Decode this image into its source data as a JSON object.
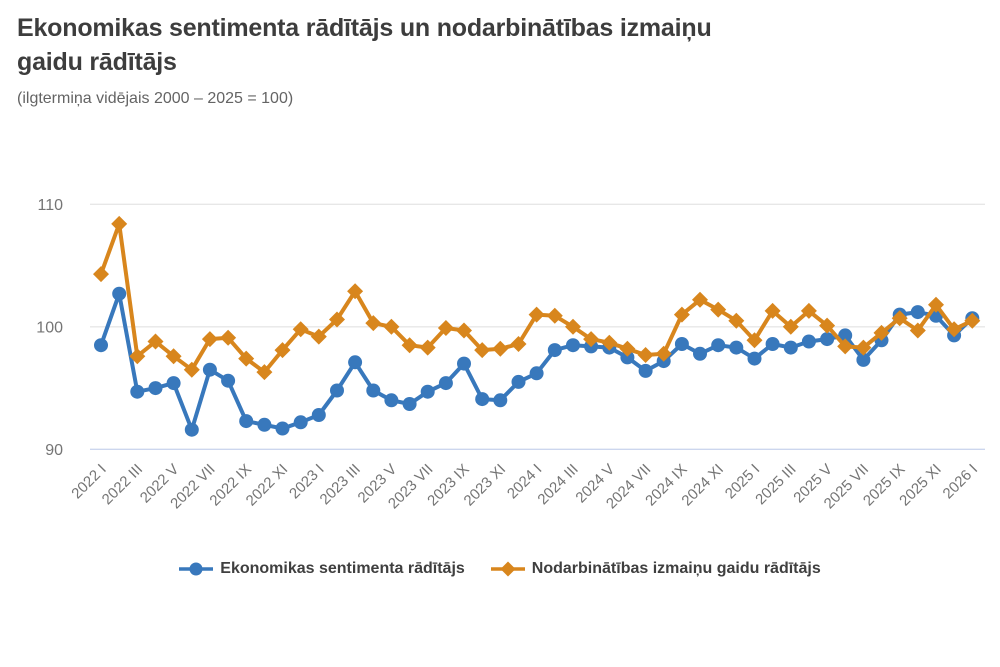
{
  "header": {
    "title_line1": "Ekonomikas sentimenta rādītājs un nodarbinātības izmaiņu",
    "title_line2": "gaidu rādītājs",
    "subtitle": "(ilgtermiņa vidējais 2000 – 2025 = 100)"
  },
  "colors": {
    "series1": "#3878bc",
    "series2": "#d8861d",
    "grid": "#e7e7e7",
    "baseline": "#ccd6ee",
    "axis_label": "#757575",
    "title": "#3d3d3d",
    "legend_text": "#3f3f3f"
  },
  "legend": {
    "item1": "Ekonomikas sentimenta rādītājs",
    "item2": "Nodarbinātības izmaiņu gaidu rādītājs"
  },
  "chart_data": {
    "type": "line",
    "title": "Ekonomikas sentimenta rādītājs un nodarbinātības izmaiņu gaidu rādītājs",
    "subtitle": "(ilgtermiņa vidējais 2000 – 2025 = 100)",
    "xlabel": "",
    "ylabel": "",
    "yticks": [
      110,
      100,
      90
    ],
    "ylim": [
      88,
      112
    ],
    "grid": "horizontal",
    "legend_position": "bottom",
    "x_tick_step": 2,
    "months": [
      "2022 I",
      "2022 II",
      "2022 III",
      "2022 IV",
      "2022 V",
      "2022 VI",
      "2022 VII",
      "2022 VIII",
      "2022 IX",
      "2022 X",
      "2022 XI",
      "2022 XII",
      "2023 I",
      "2023 II",
      "2023 III",
      "2023 IV",
      "2023 V",
      "2023 VI",
      "2023 VII",
      "2023 VIII",
      "2023 IX",
      "2023 X",
      "2023 XI",
      "2023 XII",
      "2024 I",
      "2024 II",
      "2024 III",
      "2024 IV",
      "2024 V",
      "2024 VI",
      "2024 VII",
      "2024 VIII",
      "2024 IX",
      "2024 X",
      "2024 XI",
      "2024 XII",
      "2025 I",
      "2025 II",
      "2025 III",
      "2025 IV",
      "2025 V",
      "2025 VI",
      "2025 VII",
      "2025 VIII",
      "2025 IX",
      "2025 X",
      "2025 XI",
      "2025 XII",
      "2026 I"
    ],
    "series": [
      {
        "id": "esi",
        "name": "Ekonomikas sentimenta rādītājs",
        "marker": "circle",
        "values": [
          98.5,
          102.7,
          94.7,
          95.0,
          95.4,
          91.6,
          96.5,
          95.6,
          92.3,
          92.0,
          91.7,
          92.2,
          92.8,
          94.8,
          97.1,
          94.8,
          94.0,
          93.7,
          94.7,
          95.4,
          97.0,
          94.1,
          94.0,
          95.5,
          96.2,
          98.1,
          98.5,
          98.4,
          98.3,
          97.5,
          96.4,
          97.2,
          98.6,
          97.8,
          98.5,
          98.3,
          97.4,
          98.6,
          98.3,
          98.8,
          99.0,
          99.3,
          97.3,
          98.9,
          101.0,
          101.2,
          100.9,
          99.3,
          100.7
        ]
      },
      {
        "id": "employment",
        "name": "Nodarbinātības izmaiņu gaidu rādītājs",
        "marker": "diamond",
        "values": [
          104.3,
          108.4,
          97.6,
          98.8,
          97.6,
          96.5,
          99.0,
          99.1,
          97.4,
          96.3,
          98.1,
          99.8,
          99.2,
          100.6,
          102.9,
          100.3,
          100.0,
          98.5,
          98.3,
          99.9,
          99.7,
          98.1,
          98.2,
          98.6,
          101.0,
          100.9,
          100.0,
          99.0,
          98.7,
          98.2,
          97.7,
          97.8,
          101.0,
          102.2,
          101.4,
          100.5,
          98.9,
          101.3,
          100.0,
          101.3,
          100.1,
          98.4,
          98.3,
          99.5,
          100.7,
          99.7,
          101.8,
          99.8,
          100.5
        ]
      }
    ]
  }
}
